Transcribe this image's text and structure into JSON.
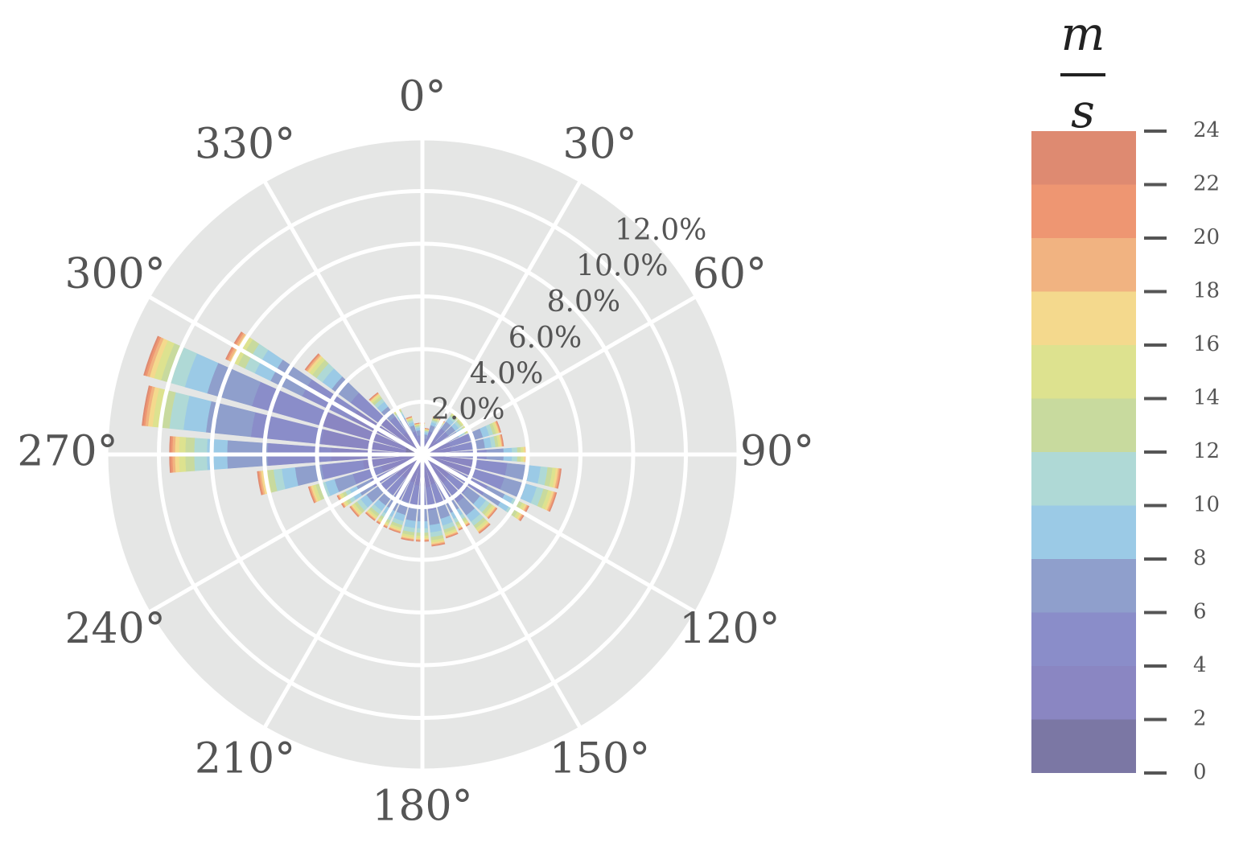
{
  "chart_data": {
    "type": "windrose",
    "angular_tick_labels": [
      "0°",
      "30°",
      "60°",
      "90°",
      "120°",
      "150°",
      "180°",
      "210°",
      "240°",
      "270°",
      "300°",
      "330°"
    ],
    "angular_ticks_deg": [
      0,
      30,
      60,
      90,
      120,
      150,
      180,
      210,
      240,
      270,
      300,
      330
    ],
    "direction": "clockwise from north",
    "radial_tick_labels": [
      "2.0%",
      "4.0%",
      "6.0%",
      "8.0%",
      "10.0%",
      "12.0%"
    ],
    "radial_ticks": [
      2,
      4,
      6,
      8,
      10,
      12
    ],
    "rlim": [
      0,
      12
    ],
    "sector_width_deg": 10,
    "directions_deg": [
      0,
      10,
      20,
      30,
      40,
      50,
      60,
      70,
      80,
      90,
      100,
      110,
      120,
      130,
      140,
      150,
      160,
      170,
      180,
      190,
      200,
      210,
      220,
      230,
      240,
      250,
      260,
      270,
      280,
      290,
      300,
      310,
      320,
      330,
      340,
      350
    ],
    "speed_bins_label": "m/s",
    "speed_bin_edges": [
      0,
      2,
      4,
      6,
      8,
      10,
      12,
      14,
      16,
      18,
      20,
      22,
      24
    ],
    "speed_bin_colors": [
      "#7b77a4",
      "#8a86c2",
      "#8a8dc9",
      "#8f9fcc",
      "#9bcae6",
      "#afd9d6",
      "#c8da9e",
      "#dde28f",
      "#f4d98d",
      "#f1b381",
      "#ee9672",
      "#de8a71"
    ],
    "frequency_percent_total": [
      1.2,
      1.0,
      1.5,
      1.5,
      2.0,
      2.0,
      2.0,
      3.1,
      3.1,
      4.0,
      5.3,
      5.3,
      4.5,
      3.5,
      3.7,
      3.2,
      3.3,
      3.5,
      3.3,
      3.3,
      3.1,
      3.1,
      3.1,
      3.4,
      3.6,
      4.5,
      6.3,
      9.6,
      10.7,
      11.0,
      8.3,
      5.5,
      2.9,
      2.0,
      1.5,
      1.2
    ],
    "colorbar": {
      "title_numerator": "m",
      "title_denominator": "s",
      "tick_labels": [
        "0",
        "2",
        "4",
        "6",
        "8",
        "10",
        "12",
        "14",
        "16",
        "18",
        "20",
        "22",
        "24"
      ]
    }
  }
}
